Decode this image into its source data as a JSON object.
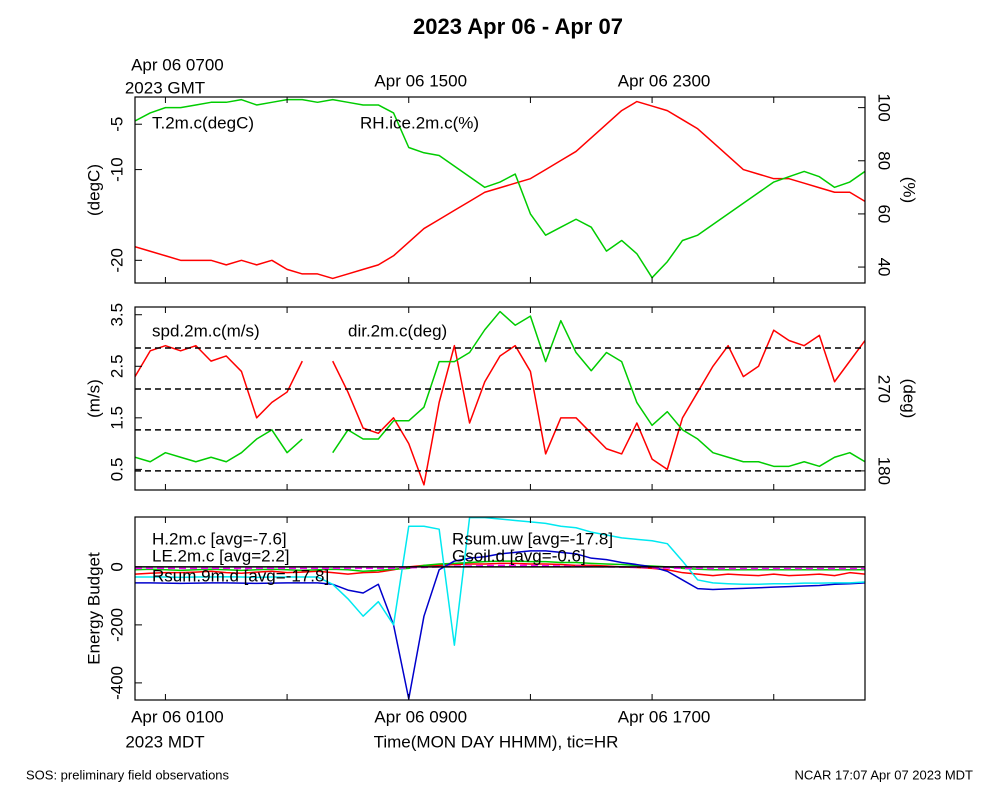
{
  "title": "2023 Apr 06 - Apr 07",
  "footer_left": "SOS: preliminary field observations",
  "footer_right": "NCAR 17:07 Apr 07 2023 MDT",
  "chart_data": [
    {
      "type": "line",
      "x": [
        0,
        0.5,
        1,
        1.5,
        2,
        2.5,
        3,
        3.5,
        4,
        4.5,
        5,
        5.5,
        6,
        6.5,
        7,
        7.5,
        8,
        8.5,
        9,
        9.5,
        10,
        10.5,
        11,
        11.5,
        12,
        12.5,
        13,
        13.5,
        14,
        14.5,
        15,
        15.5,
        16,
        16.5,
        17,
        17.5,
        18,
        18.5,
        19,
        19.5,
        20,
        20.5,
        21,
        21.5,
        22,
        22.5,
        23,
        23.5,
        24
      ],
      "xlim": [
        0,
        24
      ],
      "xtickmarks": [
        1,
        5,
        9,
        13,
        17,
        21
      ],
      "xticks_top": [
        {
          "value": 1,
          "label": "Apr 06 0700"
        },
        {
          "value": 9,
          "label": "Apr 06 1500"
        },
        {
          "value": 17,
          "label": "Apr 06 2300"
        }
      ],
      "xtop_note": "2023 GMT",
      "ylabel": "(degC)",
      "ylim": [
        -22.5,
        -2
      ],
      "yticks": [
        -20,
        -10,
        -5
      ],
      "y2label": "(%)",
      "y2lim": [
        34,
        104
      ],
      "y2ticks": [
        40,
        60,
        80,
        100
      ],
      "series": [
        {
          "name": "T.2m.c(degC)",
          "color": "#ff0000",
          "values": [
            -18.5,
            -19,
            -19.5,
            -20,
            -20,
            -20,
            -20.5,
            -20,
            -20.5,
            -20,
            -21,
            -21.5,
            -21.5,
            -22,
            -21.5,
            -21,
            -20.5,
            -19.5,
            -18,
            -16.5,
            -15.5,
            -14.5,
            -13.5,
            -12.5,
            -12,
            -11.5,
            -11,
            -10,
            -9,
            -8,
            -6.5,
            -5,
            -3.5,
            -2.5,
            -3,
            -3.5,
            -4.5,
            -5.5,
            -7,
            -8.5,
            -10,
            -10.5,
            -11,
            -11,
            -11.5,
            -12,
            -12.5,
            -12.5,
            -13.5
          ]
        },
        {
          "name": "RH.ice.2m.c(%)",
          "color": "#00cc00",
          "axis": "y2",
          "values": [
            95,
            98,
            100,
            100,
            101,
            102,
            102,
            103,
            101,
            102,
            103,
            103,
            102,
            103,
            102,
            101,
            101,
            98,
            85,
            83,
            82,
            78,
            74,
            70,
            72,
            75,
            60,
            52,
            55,
            58,
            55,
            46,
            50,
            45,
            36,
            42,
            50,
            52,
            56,
            60,
            64,
            68,
            72,
            74,
            76,
            74,
            70,
            72,
            76
          ]
        }
      ]
    },
    {
      "type": "line",
      "x": [
        0,
        0.5,
        1,
        1.5,
        2,
        2.5,
        3,
        3.5,
        4,
        4.5,
        5,
        5.5,
        6,
        6.5,
        7,
        7.5,
        8,
        8.5,
        9,
        9.5,
        10,
        10.5,
        11,
        11.5,
        12,
        12.5,
        13,
        13.5,
        14,
        14.5,
        15,
        15.5,
        16,
        16.5,
        17,
        17.5,
        18,
        18.5,
        19,
        19.5,
        20,
        20.5,
        21,
        21.5,
        22,
        22.5,
        23,
        23.5,
        24
      ],
      "xlim": [
        0,
        24
      ],
      "xtickmarks": [
        1,
        5,
        9,
        13,
        17,
        21
      ],
      "ylabel": "(m/s)",
      "ylim": [
        0.1,
        3.65
      ],
      "yticks": [
        0.5,
        1.5,
        2.5,
        3.5
      ],
      "y2label": "(deg)",
      "y2lim": [
        159,
        360
      ],
      "y2ticks": [
        180,
        270
      ],
      "y2grid": [
        180,
        225,
        270,
        315
      ],
      "series": [
        {
          "name": "spd.2m.c(m/s)",
          "color": "#ff0000",
          "values": [
            2.3,
            2.8,
            2.9,
            2.8,
            2.9,
            2.6,
            2.7,
            2.4,
            1.5,
            1.8,
            2.0,
            2.6,
            null,
            2.6,
            2.0,
            1.3,
            1.2,
            1.5,
            1.0,
            0.2,
            1.8,
            2.9,
            1.4,
            2.2,
            2.7,
            2.9,
            2.4,
            0.8,
            1.5,
            1.5,
            1.2,
            0.9,
            0.8,
            1.4,
            0.7,
            0.5,
            1.5,
            2.0,
            2.5,
            2.9,
            2.3,
            2.5,
            3.2,
            3.0,
            2.9,
            3.1,
            2.2,
            2.6,
            3.0
          ]
        },
        {
          "name": "dir.2m.c(deg)",
          "color": "#00cc00",
          "axis": "y2",
          "values": [
            195,
            190,
            200,
            195,
            190,
            195,
            190,
            200,
            215,
            225,
            200,
            215,
            null,
            200,
            225,
            215,
            215,
            235,
            235,
            250,
            300,
            300,
            310,
            335,
            355,
            340,
            350,
            300,
            345,
            310,
            290,
            310,
            300,
            255,
            230,
            245,
            225,
            215,
            200,
            195,
            190,
            190,
            185,
            185,
            190,
            185,
            195,
            200,
            190
          ]
        }
      ]
    },
    {
      "type": "line",
      "x": [
        0,
        0.5,
        1,
        1.5,
        2,
        2.5,
        3,
        3.5,
        4,
        4.5,
        5,
        5.5,
        6,
        6.5,
        7,
        7.5,
        8,
        8.5,
        9,
        9.5,
        10,
        10.5,
        11,
        11.5,
        12,
        12.5,
        13,
        13.5,
        14,
        14.5,
        15,
        15.5,
        16,
        16.5,
        17,
        17.5,
        18,
        18.5,
        19,
        19.5,
        20,
        20.5,
        21,
        21.5,
        22,
        22.5,
        23,
        23.5,
        24
      ],
      "xlim": [
        0,
        24
      ],
      "xtickmarks": [
        1,
        5,
        9,
        13,
        17,
        21
      ],
      "xticks": [
        {
          "value": 1,
          "label": "Apr 06 0100"
        },
        {
          "value": 9,
          "label": "Apr 06 0900"
        },
        {
          "value": 17,
          "label": "Apr 06 1700"
        }
      ],
      "xnote": "2023 MDT",
      "xlabel": "Time(MON DAY HHMM), tic=HR",
      "ylabel": "Energy Budget",
      "ylim": [
        -459,
        172
      ],
      "yticks": [
        -400,
        -200,
        0
      ],
      "hline": 0,
      "series": [
        {
          "name": "H.2m.c [avg=-7.6]",
          "color": "#ff0000",
          "values": [
            -25,
            -22,
            -20,
            -20,
            -18,
            -15,
            -20,
            -22,
            -18,
            -15,
            -20,
            -18,
            -15,
            -20,
            -25,
            -20,
            -18,
            -10,
            0,
            5,
            5,
            8,
            10,
            10,
            12,
            12,
            10,
            10,
            8,
            5,
            5,
            3,
            0,
            -2,
            -5,
            -10,
            -20,
            -25,
            -30,
            -25,
            -28,
            -30,
            -25,
            -30,
            -28,
            -25,
            -30,
            -20,
            -25
          ]
        },
        {
          "name": "LE.2m.c [avg=2.2]",
          "color": "#00cc00",
          "values": [
            -10,
            -8,
            -10,
            -12,
            -10,
            -8,
            -10,
            -12,
            -10,
            -8,
            -10,
            -12,
            -10,
            -8,
            -10,
            -15,
            -12,
            -8,
            -5,
            5,
            10,
            12,
            15,
            18,
            20,
            20,
            18,
            18,
            15,
            15,
            12,
            10,
            8,
            5,
            3,
            0,
            -5,
            -8,
            -10,
            -10,
            -10,
            -10,
            -10,
            -10,
            -10,
            -10,
            -10,
            -10,
            -10
          ]
        },
        {
          "name": "Rsum.9m.d [avg=-17.8]",
          "color": "#0000cc",
          "values": [
            -55,
            -55,
            -56,
            -57,
            -56,
            -55,
            -55,
            -56,
            -57,
            -56,
            -55,
            -55,
            -55,
            -60,
            -80,
            -90,
            -60,
            -200,
            -455,
            -170,
            -10,
            20,
            30,
            35,
            45,
            50,
            55,
            55,
            50,
            45,
            30,
            25,
            15,
            8,
            0,
            -15,
            -45,
            -75,
            -78,
            -76,
            -74,
            -72,
            -70,
            -68,
            -66,
            -64,
            -60,
            -58,
            -55
          ]
        },
        {
          "name": "Rsum.uw [avg=-17.8]",
          "color": "#00e8f0",
          "values": [
            -35,
            -35,
            -35,
            -36,
            -35,
            -35,
            -34,
            -35,
            -36,
            -35,
            -35,
            -35,
            -35,
            -60,
            -110,
            -170,
            -120,
            -200,
            140,
            140,
            130,
            -270,
            170,
            170,
            165,
            160,
            155,
            150,
            140,
            135,
            120,
            110,
            100,
            95,
            90,
            80,
            20,
            -45,
            -55,
            -58,
            -60,
            -60,
            -58,
            -58,
            -56,
            -56,
            -55,
            -55,
            -52
          ]
        },
        {
          "name": "Gsoil.d [avg=-0.6]",
          "color": "#ff00ff",
          "dashed": true,
          "values": [
            -5,
            -5,
            -5,
            -5,
            -5,
            -5,
            -5,
            -5,
            -5,
            -5,
            -5,
            -5,
            -5,
            -5,
            -5,
            -5,
            -5,
            -5,
            -3,
            -2,
            0,
            2,
            3,
            4,
            5,
            5,
            5,
            4,
            3,
            2,
            1,
            0,
            -1,
            -2,
            -3,
            -4,
            -5,
            -5,
            -6,
            -6,
            -6,
            -6,
            -6,
            -6,
            -6,
            -6,
            -6,
            -6,
            -6
          ]
        }
      ]
    }
  ]
}
